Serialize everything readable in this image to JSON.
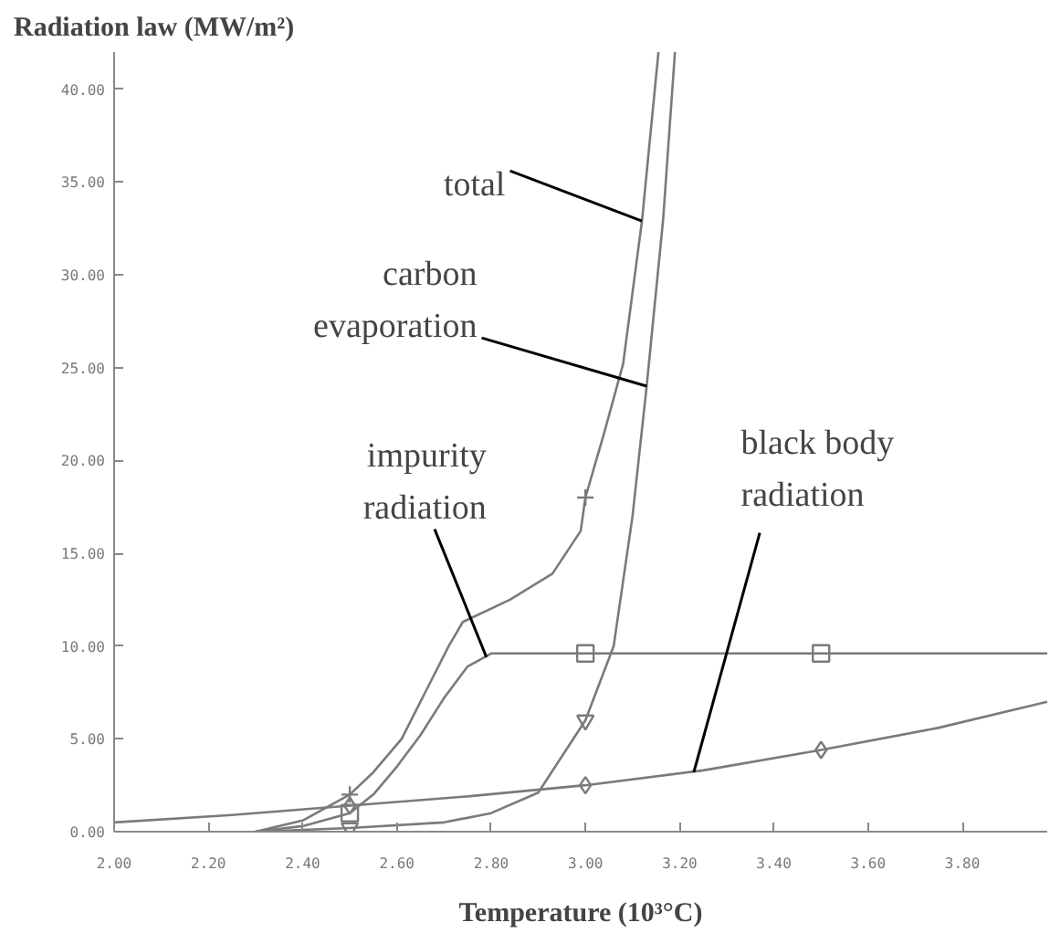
{
  "chart_data": {
    "type": "line",
    "title": "Radiation law (MW/m²)",
    "xlabel": "Temperature (10³°C)",
    "xlim": [
      2.0,
      3.98
    ],
    "ylim": [
      0,
      42
    ],
    "xticks": [
      {
        "value": 2.0,
        "label": "2.00"
      },
      {
        "value": 2.2,
        "label": "2.20"
      },
      {
        "value": 2.4,
        "label": "2.40"
      },
      {
        "value": 2.6,
        "label": "2.60"
      },
      {
        "value": 2.8,
        "label": "2.80"
      },
      {
        "value": 3.0,
        "label": "3.00"
      },
      {
        "value": 3.2,
        "label": "3.20"
      },
      {
        "value": 3.4,
        "label": "3.40"
      },
      {
        "value": 3.6,
        "label": "3.60"
      },
      {
        "value": 3.8,
        "label": "3.80"
      }
    ],
    "yticks": [
      {
        "value": 0,
        "label": "0.00"
      },
      {
        "value": 5,
        "label": "5.00"
      },
      {
        "value": 10,
        "label": "10.00"
      },
      {
        "value": 15,
        "label": "15.00"
      },
      {
        "value": 20,
        "label": "20.00"
      },
      {
        "value": 25,
        "label": "25.00"
      },
      {
        "value": 30,
        "label": "30.00"
      },
      {
        "value": 35,
        "label": "35.00"
      },
      {
        "value": 40,
        "label": "40.00"
      }
    ],
    "grid": false,
    "line_style": "solid",
    "series": [
      {
        "type": "line",
        "color": "#7a7a7a",
        "marker": "none",
        "x": [
          2.3,
          2.4,
          2.5,
          2.55,
          2.61,
          2.66,
          2.71,
          2.74,
          2.84,
          2.93,
          2.99,
          3.0,
          3.04,
          3.08,
          3.12,
          3.155
        ],
        "values": [
          0,
          0.6,
          2.0,
          3.2,
          5.0,
          7.5,
          10.0,
          11.3,
          12.5,
          13.9,
          16.2,
          18.0,
          21.5,
          25.2,
          32.9,
          42.0
        ]
      },
      {
        "type": "line",
        "color": "#7a7a7a",
        "marker": "none",
        "x": [
          2.3,
          2.5,
          2.7,
          2.8,
          2.9,
          3.0,
          3.06,
          3.1,
          3.13,
          3.165,
          3.19
        ],
        "values": [
          0,
          0.2,
          0.5,
          1.0,
          2.1,
          6.0,
          10.0,
          17.0,
          24.0,
          33.0,
          42.0
        ]
      },
      {
        "type": "line",
        "color": "#7a7a7a",
        "marker": "none",
        "x": [
          2.3,
          2.4,
          2.5,
          2.55,
          2.6,
          2.65,
          2.7,
          2.75,
          2.8,
          3.0,
          3.5,
          3.98
        ],
        "values": [
          0,
          0.3,
          1.0,
          2.0,
          3.5,
          5.2,
          7.2,
          8.9,
          9.6,
          9.6,
          9.6,
          9.6
        ]
      },
      {
        "type": "line",
        "color": "#7a7a7a",
        "marker": "none",
        "x": [
          2.0,
          2.25,
          2.5,
          2.75,
          3.0,
          3.25,
          3.5,
          3.75,
          3.98
        ],
        "values": [
          0.5,
          0.9,
          1.4,
          1.9,
          2.5,
          3.3,
          4.4,
          5.6,
          7.0
        ]
      },
      {
        "type": "scatter",
        "color": "#7a7a7a",
        "marker": "cross",
        "x": [
          2.5,
          3.0
        ],
        "values": [
          2.0,
          18.0
        ]
      },
      {
        "type": "scatter",
        "color": "#7a7a7a",
        "marker": "triangle",
        "x": [
          2.5,
          3.0
        ],
        "values": [
          0.2,
          6.0
        ]
      },
      {
        "type": "scatter",
        "color": "#7a7a7a",
        "marker": "square",
        "x": [
          2.5,
          3.0,
          3.5
        ],
        "values": [
          1.0,
          9.6,
          9.6
        ]
      },
      {
        "type": "scatter",
        "color": "#7a7a7a",
        "marker": "diamond",
        "x": [
          2.5,
          3.0,
          3.5
        ],
        "values": [
          1.4,
          2.5,
          4.4
        ]
      }
    ],
    "annotations": [
      {
        "text": "total",
        "x": 3.12,
        "y": 32.9
      },
      {
        "text": "carbon\nevaporation",
        "x": 3.13,
        "y": 24.0
      },
      {
        "text": "impurity\nradiation",
        "x": 2.79,
        "y": 9.4
      },
      {
        "text": "black body\nradiation",
        "x": 3.23,
        "y": 3.2
      }
    ]
  }
}
